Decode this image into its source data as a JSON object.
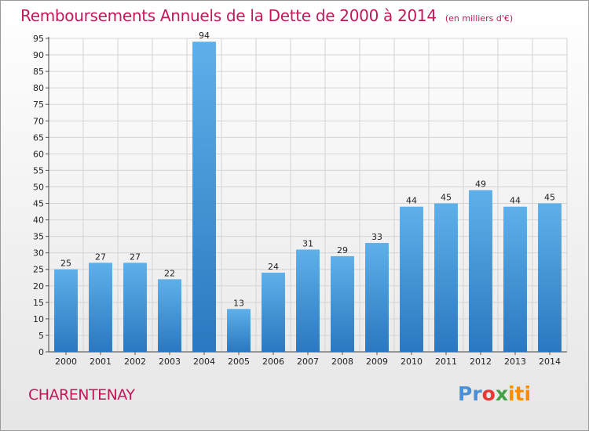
{
  "header": {
    "title": "Remboursements Annuels de la Dette de 2000 à 2014",
    "unit": "(en milliers d'€)"
  },
  "footer": {
    "town": "CHARENTENAY",
    "logo_parts": [
      "Pr",
      "o",
      "x",
      "iti"
    ]
  },
  "colors": {
    "bar_light": "#5eb0ea",
    "bar_dark": "#2a78c0",
    "title": "#c2185b"
  },
  "chart_data": {
    "type": "bar",
    "categories": [
      "2000",
      "2001",
      "2002",
      "2003",
      "2004",
      "2005",
      "2006",
      "2007",
      "2008",
      "2009",
      "2010",
      "2011",
      "2012",
      "2013",
      "2014"
    ],
    "values": [
      25,
      27,
      27,
      22,
      94,
      13,
      24,
      31,
      29,
      33,
      44,
      45,
      49,
      44,
      45
    ],
    "title": "Remboursements Annuels de la Dette de 2000 à 2014",
    "subtitle": "(en milliers d'€)",
    "ylim": [
      0,
      95
    ],
    "yticks": [
      0,
      5,
      10,
      15,
      20,
      25,
      30,
      35,
      40,
      45,
      50,
      55,
      60,
      65,
      70,
      75,
      80,
      85,
      90,
      95
    ],
    "grid": true,
    "data_labels": true
  }
}
